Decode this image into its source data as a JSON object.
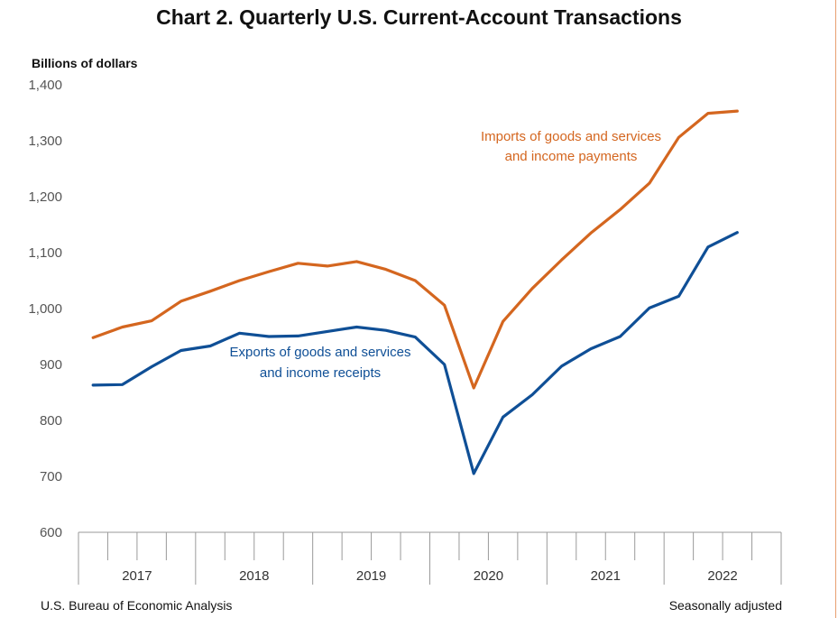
{
  "chart_data": {
    "type": "line",
    "title": "Chart 2. Quarterly U.S. Current-Account Transactions",
    "ylabel": "Billions of dollars",
    "xlabel": "",
    "ylim": [
      600,
      1400
    ],
    "yticks": [
      "600",
      "700",
      "800",
      "900",
      "1,000",
      "1,100",
      "1,200",
      "1,300",
      "1,400"
    ],
    "grid": false,
    "years": [
      "2017",
      "2018",
      "2019",
      "2020",
      "2021",
      "2022"
    ],
    "x": [
      "2017 Q1",
      "2017 Q2",
      "2017 Q3",
      "2017 Q4",
      "2018 Q1",
      "2018 Q2",
      "2018 Q3",
      "2018 Q4",
      "2019 Q1",
      "2019 Q2",
      "2019 Q3",
      "2019 Q4",
      "2020 Q1",
      "2020 Q2",
      "2020 Q3",
      "2020 Q4",
      "2021 Q1",
      "2021 Q2",
      "2021 Q3",
      "2021 Q4",
      "2022 Q1",
      "2022 Q2",
      "2022 Q3"
    ],
    "series": [
      {
        "name": "Imports of goods and services and income payments",
        "label_lines": [
          "Imports of goods and services",
          "and income payments"
        ],
        "color": "#d4661f",
        "values": [
          948,
          967,
          978,
          1013,
          1031,
          1050,
          1066,
          1081,
          1076,
          1084,
          1070,
          1050,
          1006,
          858,
          977,
          1036,
          1087,
          1135,
          1177,
          1224,
          1306,
          1349,
          1353
        ]
      },
      {
        "name": "Exports of goods and services and income receipts",
        "label_lines": [
          "Exports of goods and services",
          "and income receipts"
        ],
        "color": "#0f4f96",
        "values": [
          863,
          864,
          896,
          925,
          933,
          956,
          950,
          951,
          959,
          967,
          961,
          949,
          900,
          705,
          806,
          846,
          897,
          928,
          950,
          1001,
          1022,
          1110,
          1136
        ]
      }
    ]
  },
  "footer": {
    "source": "U.S. Bureau of Economic Analysis",
    "note": "Seasonally adjusted"
  }
}
